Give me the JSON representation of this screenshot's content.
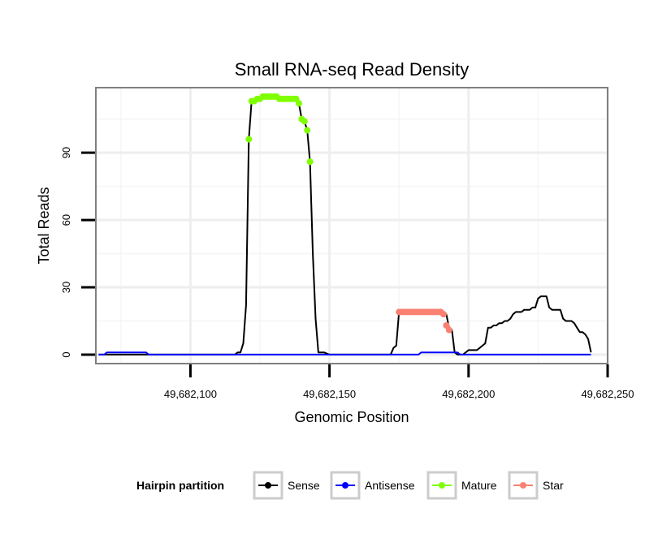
{
  "chart_data": {
    "type": "line",
    "title": "Small RNA-seq Read Density",
    "xlabel": "Genomic Position",
    "ylabel": "Total Reads",
    "xlim": [
      49682066,
      49682250
    ],
    "ylim": [
      -4,
      119
    ],
    "x_ticks": [
      {
        "value": 49682100,
        "label": "49,682,100"
      },
      {
        "value": 49682150,
        "label": "49,682,150"
      },
      {
        "value": 49682200,
        "label": "49,682,200"
      },
      {
        "value": 49682250,
        "label": "49,682,250"
      }
    ],
    "y_ticks": [
      {
        "value": 0,
        "label": "0"
      },
      {
        "value": 30,
        "label": "30"
      },
      {
        "value": 60,
        "label": "60"
      },
      {
        "value": 90,
        "label": "90"
      }
    ],
    "grid": true,
    "legend": {
      "title": "Hairpin partition",
      "position": "bottom",
      "entries": [
        {
          "name": "Sense",
          "color": "#000000"
        },
        {
          "name": "Antisense",
          "color": "#0000ff"
        },
        {
          "name": "Mature",
          "color": "#7fff00"
        },
        {
          "name": "Star",
          "color": "#fa8072"
        }
      ]
    },
    "series": [
      {
        "name": "Sense",
        "color": "#000000",
        "kind": "line",
        "x": [
          49682067,
          49682116,
          49682117,
          49682118,
          49682119,
          49682120,
          49682121,
          49682122,
          49682123,
          49682124,
          49682126,
          49682128,
          49682130,
          49682132,
          49682134,
          49682136,
          49682138,
          49682139,
          49682140,
          49682141,
          49682142,
          49682143,
          49682144,
          49682145,
          49682146,
          49682148,
          49682150,
          49682172,
          49682173,
          49682174,
          49682175,
          49682176,
          49682177,
          49682189,
          49682190,
          49682191,
          49682192,
          49682193,
          49682194,
          49682195,
          49682196,
          49682197,
          49682198,
          49682200,
          49682202,
          49682203,
          49682204,
          49682205,
          49682206,
          49682207,
          49682208,
          49682209,
          49682210,
          49682211,
          49682212,
          49682213,
          49682214,
          49682215,
          49682216,
          49682217,
          49682218,
          49682219,
          49682220,
          49682221,
          49682222,
          49682223,
          49682224,
          49682225,
          49682226,
          49682227,
          49682228,
          49682229,
          49682230,
          49682231,
          49682232,
          49682233,
          49682234,
          49682235,
          49682236,
          49682237,
          49682238,
          49682239,
          49682240,
          49682241,
          49682242,
          49682243,
          49682244
        ],
        "values": [
          0,
          0,
          1,
          1,
          5,
          22,
          96,
          113,
          114,
          114,
          115,
          115,
          115,
          114,
          114,
          114,
          114,
          112,
          105,
          104,
          100,
          86,
          45,
          16,
          1,
          1,
          0,
          0,
          3,
          4,
          19,
          19,
          19,
          19,
          19,
          18,
          18,
          12,
          11,
          1,
          0,
          0,
          0,
          2,
          2,
          2,
          3,
          4,
          5,
          12,
          12,
          13,
          13,
          14,
          14,
          15,
          15,
          16,
          18,
          19,
          19,
          19,
          20,
          20,
          20,
          21,
          21,
          25,
          26,
          26,
          26,
          21,
          20,
          20,
          20,
          20,
          16,
          15,
          15,
          15,
          14,
          12,
          10,
          10,
          9,
          7,
          1
        ]
      },
      {
        "name": "Antisense",
        "color": "#0000ff",
        "kind": "line",
        "x": [
          49682067,
          49682069,
          49682070,
          49682084,
          49682085,
          49682182,
          49682183,
          49682196,
          49682197,
          49682244
        ],
        "values": [
          0,
          0,
          1,
          1,
          0,
          0,
          1,
          1,
          0,
          0
        ]
      },
      {
        "name": "Mature",
        "color": "#7fff00",
        "kind": "points",
        "x": [
          49682121,
          49682122,
          49682123,
          49682124,
          49682125,
          49682126,
          49682127,
          49682128,
          49682129,
          49682130,
          49682131,
          49682132,
          49682133,
          49682134,
          49682135,
          49682136,
          49682137,
          49682138,
          49682139,
          49682140,
          49682141,
          49682142,
          49682143
        ],
        "values": [
          96,
          113,
          113,
          114,
          114,
          115,
          115,
          115,
          115,
          115,
          115,
          114,
          114,
          114,
          114,
          114,
          114,
          114,
          112,
          105,
          104,
          100,
          86
        ]
      },
      {
        "name": "Star",
        "color": "#fa8072",
        "kind": "points",
        "x": [
          49682175,
          49682176,
          49682177,
          49682178,
          49682179,
          49682180,
          49682181,
          49682182,
          49682183,
          49682184,
          49682185,
          49682186,
          49682187,
          49682188,
          49682189,
          49682190,
          49682191,
          49682192,
          49682193
        ],
        "values": [
          19,
          19,
          19,
          19,
          19,
          19,
          19,
          19,
          19,
          19,
          19,
          19,
          19,
          19,
          19,
          19,
          18,
          13,
          11
        ]
      }
    ]
  }
}
